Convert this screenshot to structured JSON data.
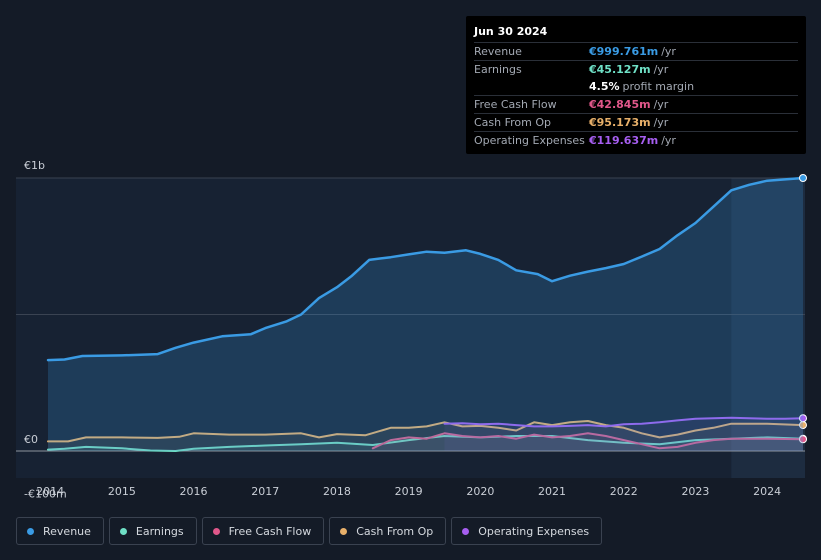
{
  "tooltip": {
    "date": "Jun 30 2024",
    "rows": [
      {
        "label": "Revenue",
        "value": "€999.761m",
        "unit": "/yr",
        "color": "#3a9be4"
      },
      {
        "label": "Earnings",
        "value": "€45.127m",
        "unit": "/yr",
        "color": "#6fe0c6"
      },
      {
        "label": "",
        "value": "4.5%",
        "unit": "profit margin",
        "color": "#ffffff"
      },
      {
        "label": "Free Cash Flow",
        "value": "€42.845m",
        "unit": "/yr",
        "color": "#e0578a"
      },
      {
        "label": "Cash From Op",
        "value": "€95.173m",
        "unit": "/yr",
        "color": "#e8b06a"
      },
      {
        "label": "Operating Expenses",
        "value": "€119.637m",
        "unit": "/yr",
        "color": "#a65ef0"
      }
    ]
  },
  "legend": [
    {
      "label": "Revenue",
      "color": "#3a9be4"
    },
    {
      "label": "Earnings",
      "color": "#6fe0c6"
    },
    {
      "label": "Free Cash Flow",
      "color": "#e0578a"
    },
    {
      "label": "Cash From Op",
      "color": "#e8b06a"
    },
    {
      "label": "Operating Expenses",
      "color": "#a65ef0"
    }
  ],
  "chart_data": {
    "type": "area",
    "title": "",
    "xlabel": "",
    "ylabel": "",
    "unit": "€m",
    "ylim": [
      -100,
      1000
    ],
    "xlim": [
      2013.97,
      2024.5
    ],
    "y_tick_labels": [
      {
        "value": 1000,
        "label": "€1b"
      },
      {
        "value": 0,
        "label": "€0"
      },
      {
        "value": -100,
        "label": "-€100m"
      }
    ],
    "gridlines": [
      1000,
      500,
      0
    ],
    "x_ticks": [
      2014,
      2015,
      2016,
      2017,
      2018,
      2019,
      2020,
      2021,
      2022,
      2023,
      2024
    ],
    "highlight_range": [
      2023.5,
      2024.5
    ],
    "series": [
      {
        "name": "Revenue",
        "color": "#3a9be4",
        "fill": true,
        "x": [
          2013.97,
          2014.2,
          2014.45,
          2015.0,
          2015.5,
          2015.75,
          2016.0,
          2016.4,
          2016.8,
          2017.0,
          2017.3,
          2017.5,
          2017.75,
          2018.0,
          2018.2,
          2018.45,
          2018.75,
          2019.0,
          2019.25,
          2019.5,
          2019.8,
          2020.0,
          2020.25,
          2020.5,
          2020.8,
          2021.0,
          2021.25,
          2021.5,
          2021.75,
          2022.0,
          2022.25,
          2022.5,
          2022.75,
          2023.0,
          2023.25,
          2023.5,
          2023.75,
          2024.0,
          2024.25,
          2024.5
        ],
        "values": [
          333,
          335,
          348,
          350,
          355,
          378,
          397,
          420,
          428,
          450,
          475,
          500,
          560,
          600,
          640,
          700,
          710,
          720,
          730,
          726,
          735,
          722,
          700,
          662,
          648,
          622,
          642,
          657,
          670,
          685,
          712,
          740,
          790,
          835,
          895,
          955,
          975,
          990,
          995,
          1000
        ]
      },
      {
        "name": "Earnings",
        "color": "#6fe0c6",
        "fill": false,
        "x": [
          2013.97,
          2014.2,
          2014.5,
          2015.0,
          2015.4,
          2015.75,
          2016.0,
          2016.5,
          2017.0,
          2017.5,
          2018.0,
          2018.5,
          2019.0,
          2019.5,
          2020.0,
          2020.5,
          2021.0,
          2021.5,
          2022.0,
          2022.5,
          2023.0,
          2023.5,
          2024.0,
          2024.5
        ],
        "values": [
          5,
          8,
          15,
          10,
          2,
          0,
          8,
          15,
          20,
          25,
          30,
          22,
          40,
          55,
          50,
          55,
          55,
          40,
          30,
          25,
          40,
          45,
          50,
          45
        ]
      },
      {
        "name": "Free Cash Flow",
        "color": "#e0578a",
        "fill": false,
        "x": [
          2018.5,
          2018.75,
          2019.0,
          2019.25,
          2019.5,
          2019.75,
          2020.0,
          2020.25,
          2020.5,
          2020.75,
          2021.0,
          2021.25,
          2021.5,
          2021.75,
          2022.0,
          2022.25,
          2022.5,
          2022.75,
          2023.0,
          2023.25,
          2023.5,
          2024.0,
          2024.5
        ],
        "values": [
          10,
          40,
          50,
          45,
          65,
          55,
          50,
          55,
          45,
          60,
          50,
          55,
          65,
          55,
          40,
          25,
          10,
          15,
          30,
          40,
          45,
          45,
          43
        ]
      },
      {
        "name": "Cash From Op",
        "color": "#e8b06a",
        "fill": false,
        "x": [
          2013.97,
          2014.25,
          2014.5,
          2015.0,
          2015.5,
          2015.8,
          2016.0,
          2016.5,
          2017.0,
          2017.5,
          2017.75,
          2018.0,
          2018.4,
          2018.75,
          2019.0,
          2019.25,
          2019.5,
          2019.75,
          2020.0,
          2020.25,
          2020.5,
          2020.75,
          2021.0,
          2021.25,
          2021.5,
          2021.75,
          2022.0,
          2022.25,
          2022.5,
          2022.75,
          2023.0,
          2023.25,
          2023.5,
          2024.0,
          2024.5
        ],
        "values": [
          35,
          35,
          50,
          50,
          48,
          52,
          65,
          60,
          60,
          65,
          50,
          62,
          58,
          85,
          85,
          90,
          105,
          90,
          92,
          85,
          75,
          105,
          95,
          105,
          110,
          95,
          85,
          65,
          50,
          60,
          75,
          85,
          100,
          100,
          95
        ]
      },
      {
        "name": "Operating Expenses",
        "color": "#a65ef0",
        "fill": false,
        "x": [
          2019.5,
          2019.75,
          2020.0,
          2020.25,
          2020.5,
          2020.75,
          2021.0,
          2021.25,
          2021.5,
          2021.75,
          2022.0,
          2022.25,
          2022.5,
          2022.75,
          2023.0,
          2023.25,
          2023.5,
          2023.75,
          2024.0,
          2024.25,
          2024.5
        ],
        "values": [
          100,
          102,
          98,
          100,
          95,
          90,
          90,
          92,
          95,
          90,
          98,
          100,
          105,
          112,
          118,
          120,
          122,
          120,
          118,
          118,
          120
        ]
      }
    ]
  }
}
